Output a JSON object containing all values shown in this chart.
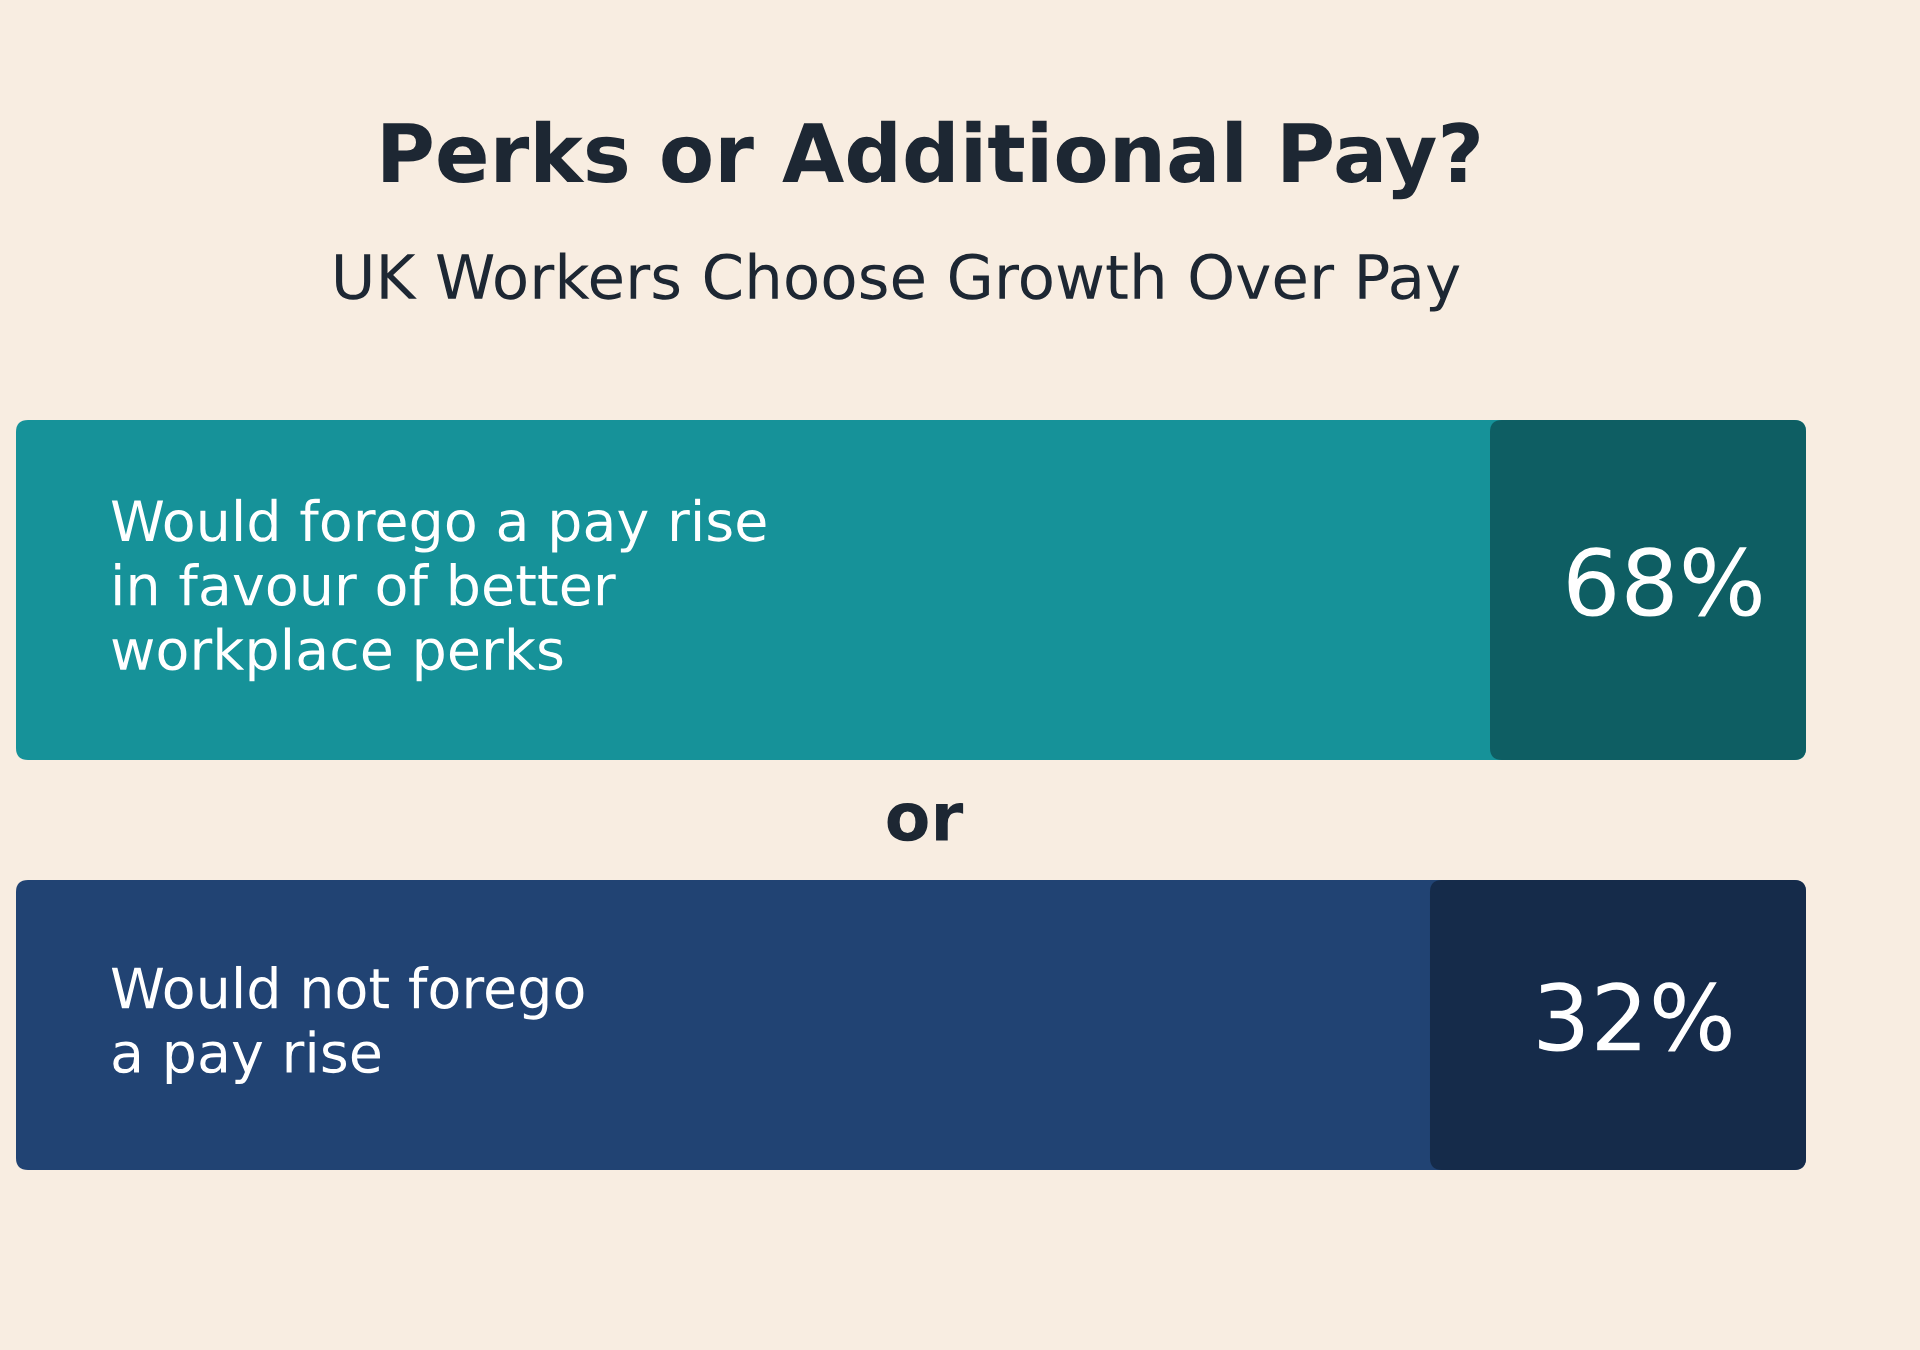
{
  "chart_data": {
    "type": "other",
    "title": "Perks or Additional Pay?",
    "subtitle": "UK Workers Choose Growth Over Pay",
    "categories": [
      "Would forego a pay rise\nin favour of better\nworkplace perks",
      "Would not forego\na pay rise"
    ],
    "values": [
      68,
      32
    ],
    "value_labels": [
      "68%",
      "32%"
    ],
    "colors": [
      "#0e5e63",
      "#152b4a"
    ],
    "annotations": [
      "or"
    ]
  }
}
